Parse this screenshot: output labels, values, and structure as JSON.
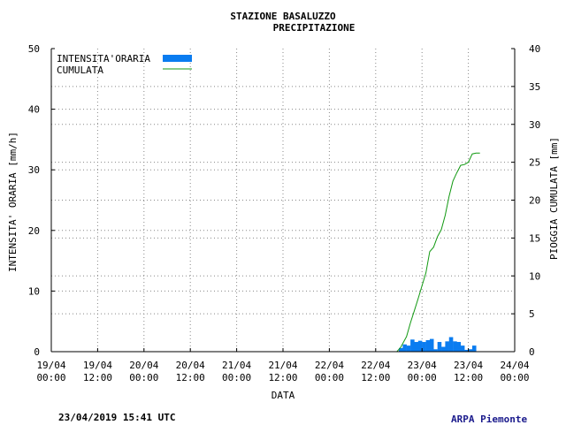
{
  "chart_data": {
    "type": "bar+line",
    "title": "STAZIONE BASALUZZO",
    "subtitle": "PRECIPITAZIONE",
    "xlabel": "DATA",
    "ylabel_left": "INTENSITA' ORARIA [mm/h]",
    "ylabel_right": "PIOGGIA CUMULATA [mm]",
    "ylim_left": [
      0,
      50
    ],
    "ylim_right": [
      0,
      40
    ],
    "yticks_left": [
      "0",
      "10",
      "20",
      "30",
      "40",
      "50"
    ],
    "yticks_right": [
      "0",
      "5",
      "10",
      "15",
      "20",
      "25",
      "30",
      "35",
      "40"
    ],
    "x_range_hours": [
      0,
      120
    ],
    "xticks": [
      {
        "date": "19/04",
        "time": "00:00"
      },
      {
        "date": "19/04",
        "time": "12:00"
      },
      {
        "date": "20/04",
        "time": "00:00"
      },
      {
        "date": "20/04",
        "time": "12:00"
      },
      {
        "date": "21/04",
        "time": "00:00"
      },
      {
        "date": "21/04",
        "time": "12:00"
      },
      {
        "date": "22/04",
        "time": "00:00"
      },
      {
        "date": "22/04",
        "time": "12:00"
      },
      {
        "date": "23/04",
        "time": "00:00"
      },
      {
        "date": "23/04",
        "time": "12:00"
      },
      {
        "date": "24/04",
        "time": "00:00"
      }
    ],
    "grid": true,
    "legend_position": "top-left",
    "series": [
      {
        "name": "INTENSITA'ORARIA",
        "kind": "bar",
        "axis": "left",
        "color": "#0a7cf0",
        "points": [
          {
            "x": 90.0,
            "y": 0.6
          },
          {
            "x": 91.0,
            "y": 1.2
          },
          {
            "x": 92.0,
            "y": 1.0
          },
          {
            "x": 93.0,
            "y": 2.0
          },
          {
            "x": 94.0,
            "y": 1.6
          },
          {
            "x": 95.0,
            "y": 1.8
          },
          {
            "x": 96.0,
            "y": 1.6
          },
          {
            "x": 97.0,
            "y": 1.9
          },
          {
            "x": 98.0,
            "y": 2.1
          },
          {
            "x": 99.0,
            "y": 0.4
          },
          {
            "x": 100.0,
            "y": 1.6
          },
          {
            "x": 101.0,
            "y": 0.8
          },
          {
            "x": 102.0,
            "y": 1.7
          },
          {
            "x": 103.0,
            "y": 2.4
          },
          {
            "x": 104.0,
            "y": 1.7
          },
          {
            "x": 105.0,
            "y": 1.6
          },
          {
            "x": 106.0,
            "y": 1.0
          },
          {
            "x": 107.0,
            "y": 0.3
          },
          {
            "x": 108.0,
            "y": 0.4
          },
          {
            "x": 109.0,
            "y": 1.0
          }
        ]
      },
      {
        "name": "CUMULATA",
        "kind": "line",
        "axis": "right",
        "color": "#119911",
        "points": [
          {
            "x": 0,
            "y": 0
          },
          {
            "x": 89.5,
            "y": 0
          },
          {
            "x": 90.5,
            "y": 0.6
          },
          {
            "x": 92,
            "y": 2.0
          },
          {
            "x": 93,
            "y": 3.8
          },
          {
            "x": 94,
            "y": 5.4
          },
          {
            "x": 95,
            "y": 7.0
          },
          {
            "x": 96,
            "y": 8.7
          },
          {
            "x": 97,
            "y": 10.4
          },
          {
            "x": 98,
            "y": 13.2
          },
          {
            "x": 99,
            "y": 13.8
          },
          {
            "x": 100,
            "y": 15.2
          },
          {
            "x": 101,
            "y": 16.1
          },
          {
            "x": 102,
            "y": 18.0
          },
          {
            "x": 103,
            "y": 20.5
          },
          {
            "x": 104,
            "y": 22.5
          },
          {
            "x": 105,
            "y": 23.6
          },
          {
            "x": 106,
            "y": 24.6
          },
          {
            "x": 107,
            "y": 24.7
          },
          {
            "x": 108,
            "y": 25.0
          },
          {
            "x": 109,
            "y": 26.1
          },
          {
            "x": 110,
            "y": 26.2
          },
          {
            "x": 111,
            "y": 26.2
          }
        ]
      }
    ]
  },
  "footer": {
    "timestamp": "23/04/2019 15:41 UTC",
    "source": "ARPA Piemonte"
  }
}
